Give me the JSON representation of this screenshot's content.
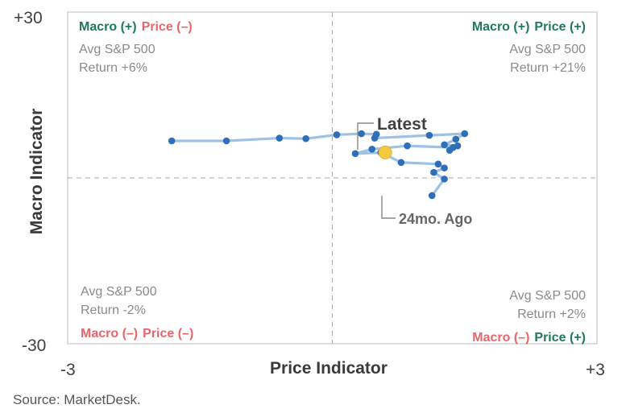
{
  "chart_data": {
    "type": "scatter",
    "xlabel": "Price Indicator",
    "ylabel": "Macro Indicator",
    "xlim": [
      -3,
      3
    ],
    "ylim": [
      -30,
      30
    ],
    "x_tick_labels": [
      "-3",
      "+3"
    ],
    "y_tick_labels": [
      "+30",
      "-30"
    ],
    "grid": false,
    "series": [
      {
        "points": [
          {
            "x": -1.2,
            "y": 6.7
          },
          {
            "x": -0.6,
            "y": 6.6
          },
          {
            "x": -0.05,
            "y": 6.9
          },
          {
            "x": 0.15,
            "y": 7.3
          },
          {
            "x": 0.45,
            "y": 7.6
          },
          {
            "x": 0.9,
            "y": 7.3
          },
          {
            "x": 0.95,
            "y": 6.7
          },
          {
            "x": 0.5,
            "y": 6.8
          },
          {
            "x": 0.3,
            "y": 7.1
          },
          {
            "x": 0.4,
            "y": 6.0
          },
          {
            "x": 0.85,
            "y": 6.0
          },
          {
            "x": 0.9,
            "y": 5.6
          },
          {
            "x": 1.0,
            "y": 5.7
          },
          {
            "x": 0.6,
            "y": 5.7
          },
          {
            "x": 0.25,
            "y": 5.0
          },
          {
            "x": 0.45,
            "y": 4.0
          },
          {
            "x": 0.8,
            "y": 2.5
          },
          {
            "x": 0.85,
            "y": 2.2
          },
          {
            "x": 0.55,
            "y": 1.8
          },
          {
            "x": 0.75,
            "y": 1.0
          },
          {
            "x": 0.7,
            "y": -0.5
          },
          {
            "x": 0.65,
            "y": -0.3
          },
          {
            "x": -1.8,
            "y": 6.6
          },
          {
            "x": -0.65,
            "y": 6.9
          },
          {
            "x": -0.45,
            "y": 6.9
          },
          {
            "x": 0.15,
            "y": 6.4
          }
        ],
        "path_order": [
          {
            "x": 1.13,
            "y": -3.2
          },
          {
            "x": 1.27,
            "y": -0.2
          },
          {
            "x": 1.15,
            "y": 1.0
          },
          {
            "x": 1.27,
            "y": 1.8
          },
          {
            "x": 1.2,
            "y": 2.5
          },
          {
            "x": 0.78,
            "y": 2.8
          },
          {
            "x": 0.55,
            "y": 4.6
          },
          {
            "x": 0.6,
            "y": 4.6
          },
          {
            "x": 0.26,
            "y": 4.4
          },
          {
            "x": 0.45,
            "y": 5.2
          },
          {
            "x": 0.85,
            "y": 5.8
          },
          {
            "x": 1.37,
            "y": 5.5
          },
          {
            "x": 1.33,
            "y": 5.0
          },
          {
            "x": 1.42,
            "y": 5.8
          },
          {
            "x": 1.27,
            "y": 6.0
          },
          {
            "x": 1.4,
            "y": 7.0
          },
          {
            "x": 1.5,
            "y": 8.0
          },
          {
            "x": 1.1,
            "y": 7.7
          },
          {
            "x": 0.48,
            "y": 7.2
          },
          {
            "x": 0.5,
            "y": 7.9
          },
          {
            "x": 0.33,
            "y": 8.0
          },
          {
            "x": 0.05,
            "y": 7.8
          },
          {
            "x": -0.3,
            "y": 7.1
          },
          {
            "x": -0.6,
            "y": 7.2
          },
          {
            "x": -1.2,
            "y": 6.7
          },
          {
            "x": -1.82,
            "y": 6.7
          }
        ],
        "latest": {
          "x": 0.6,
          "y": 4.6
        }
      }
    ],
    "quadrants": [
      {
        "macro_sign": "Macro (+)",
        "price_sign": "Price (–)",
        "line1": "Avg S&P 500",
        "line2": "Return +6%"
      },
      {
        "macro_sign": "Macro (+)",
        "price_sign": "Price (+)",
        "line1": "Avg S&P 500",
        "line2": "Return +21%"
      },
      {
        "macro_sign": "Macro (–)",
        "price_sign": "Price (–)",
        "line1": "Avg S&P 500",
        "line2": "Return -2%"
      },
      {
        "macro_sign": "Macro (–)",
        "price_sign": "Price (+)",
        "line1": "Avg S&P 500",
        "line2": "Return +2%"
      }
    ],
    "annotations": {
      "latest": "Latest",
      "oldest": "24mo. Ago"
    },
    "colors": {
      "positive": "#1e7a5a",
      "negative": "#e8666b",
      "line": "#9ec2e6",
      "point": "#2e6fb8",
      "highlight": "#f5c842"
    }
  },
  "source": "Source: MarketDesk."
}
